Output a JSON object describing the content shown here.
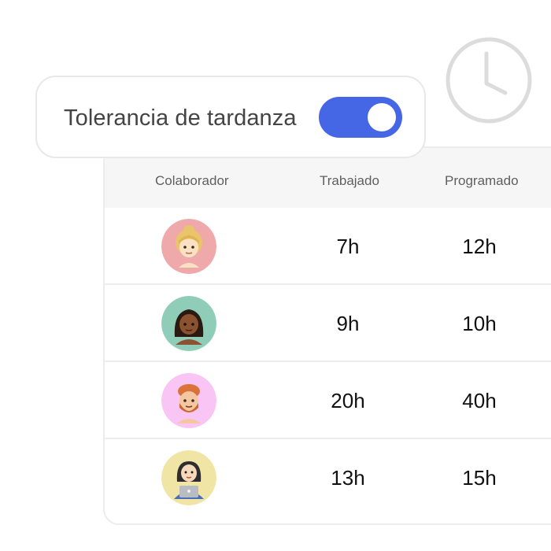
{
  "toggle": {
    "label": "Tolerancia de tardanza",
    "on": true,
    "accent_color": "#4566e5"
  },
  "clock_icon": "clock-icon",
  "table": {
    "headers": [
      "Colaborador",
      "Trabajado",
      "Programado"
    ],
    "rows": [
      {
        "avatar": "woman-blonde-emoji",
        "avatar_bg": "#f0a9ab",
        "worked": "7h",
        "scheduled": "12h"
      },
      {
        "avatar": "woman-dark-hair-emoji",
        "avatar_bg": "#8fcdb8",
        "worked": "9h",
        "scheduled": "10h"
      },
      {
        "avatar": "man-red-hair-beard-emoji",
        "avatar_bg": "#f8c5f4",
        "worked": "20h",
        "scheduled": "40h"
      },
      {
        "avatar": "woman-with-laptop-emoji",
        "avatar_bg": "#f1e5a6",
        "worked": "13h",
        "scheduled": "15h"
      }
    ]
  }
}
